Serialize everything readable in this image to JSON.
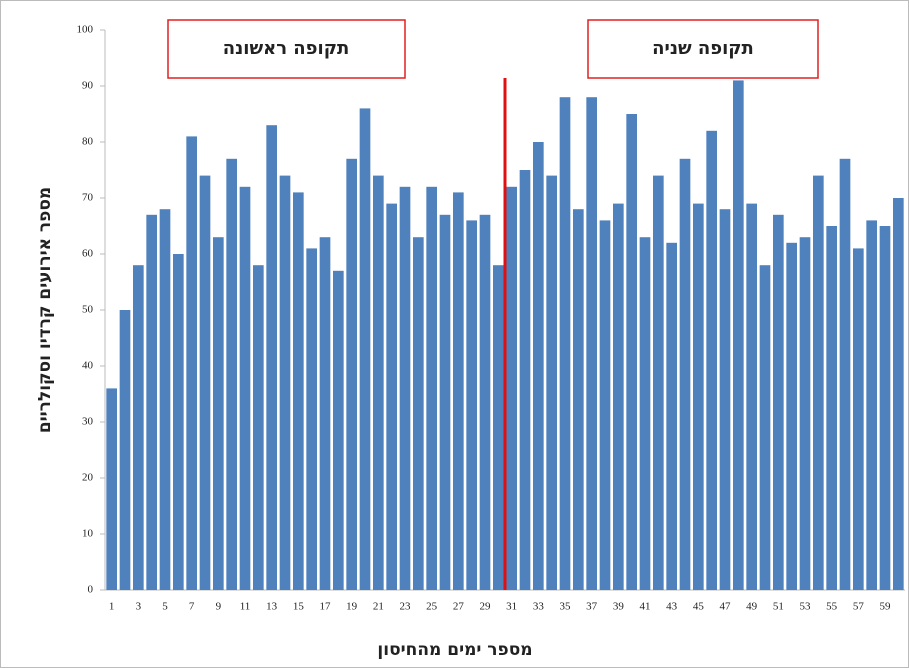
{
  "chart_data": {
    "type": "bar",
    "y_label": "מספר אירועים קרדיו וסקולריים",
    "x_label": "מספר ימים מהחיסון",
    "annotations": [
      "תקופה ראשונה",
      "תקופה שניה"
    ],
    "categories": [
      1,
      null,
      3,
      null,
      5,
      null,
      7,
      null,
      9,
      null,
      11,
      null,
      13,
      null,
      15,
      null,
      17,
      null,
      19,
      null,
      21,
      null,
      23,
      null,
      25,
      null,
      27,
      null,
      29,
      null,
      31,
      null,
      33,
      null,
      35,
      null,
      37,
      null,
      39,
      null,
      41,
      null,
      43,
      null,
      45,
      null,
      47,
      null,
      49,
      null,
      51,
      null,
      53,
      null,
      55,
      null,
      57,
      null,
      59,
      null
    ],
    "values": [
      36,
      50,
      58,
      67,
      68,
      60,
      81,
      74,
      63,
      77,
      72,
      58,
      83,
      74,
      71,
      61,
      63,
      57,
      77,
      86,
      74,
      69,
      72,
      63,
      72,
      67,
      71,
      66,
      67,
      58,
      72,
      75,
      80,
      74,
      88,
      68,
      88,
      66,
      69,
      85,
      63,
      74,
      62,
      77,
      69,
      82,
      68,
      91,
      69,
      58,
      67,
      62,
      63,
      74,
      65,
      77,
      61,
      66,
      65,
      70
    ],
    "color": "#4f81bd",
    "ylim": [
      0,
      100
    ],
    "yticks": [
      0,
      10,
      20,
      30,
      40,
      50,
      60,
      70,
      80,
      90,
      100
    ],
    "grid": false
  }
}
